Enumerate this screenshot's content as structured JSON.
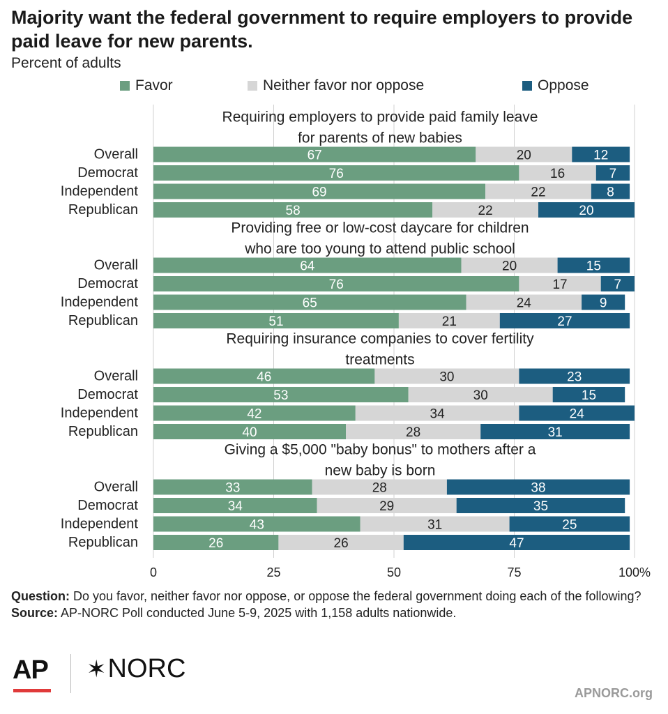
{
  "title": "Majority want the federal government to require employers to provide paid leave for new parents.",
  "subtitle": "Percent of adults",
  "legend": [
    {
      "label": "Favor",
      "color": "#6b9e80"
    },
    {
      "label": "Neither favor nor oppose",
      "color": "#d6d6d6"
    },
    {
      "label": "Oppose",
      "color": "#1c5d80"
    }
  ],
  "chart_data": {
    "type": "bar",
    "orientation": "horizontal-stacked",
    "xlim": [
      0,
      100
    ],
    "xticks": [
      "0",
      "25",
      "50",
      "75",
      "100%"
    ],
    "grid": true,
    "legend_position": "top",
    "series_names": [
      "Favor",
      "Neither favor nor oppose",
      "Oppose"
    ],
    "colors": [
      "#6b9e80",
      "#d6d6d6",
      "#1c5d80"
    ],
    "label_colors": [
      "#ffffff",
      "#222222",
      "#ffffff"
    ],
    "groups": [
      {
        "title": [
          "Requiring employers to provide paid family leave",
          "for parents of new babies"
        ],
        "rows": [
          {
            "label": "Overall",
            "values": [
              67,
              20,
              12
            ]
          },
          {
            "label": "Democrat",
            "values": [
              76,
              16,
              7
            ]
          },
          {
            "label": "Independent",
            "values": [
              69,
              22,
              8
            ]
          },
          {
            "label": "Republican",
            "values": [
              58,
              22,
              20
            ]
          }
        ]
      },
      {
        "title": [
          "Providing free or low-cost daycare for children",
          "who are too young to attend public school"
        ],
        "rows": [
          {
            "label": "Overall",
            "values": [
              64,
              20,
              15
            ]
          },
          {
            "label": "Democrat",
            "values": [
              76,
              17,
              7
            ]
          },
          {
            "label": "Independent",
            "values": [
              65,
              24,
              9
            ]
          },
          {
            "label": "Republican",
            "values": [
              51,
              21,
              27
            ]
          }
        ]
      },
      {
        "title": [
          "Requiring insurance companies to cover fertility",
          "treatments"
        ],
        "rows": [
          {
            "label": "Overall",
            "values": [
              46,
              30,
              23
            ]
          },
          {
            "label": "Democrat",
            "values": [
              53,
              30,
              15
            ]
          },
          {
            "label": "Independent",
            "values": [
              42,
              34,
              24
            ]
          },
          {
            "label": "Republican",
            "values": [
              40,
              28,
              31
            ]
          }
        ]
      },
      {
        "title": [
          "Giving a $5,000 \"baby bonus\" to mothers after a",
          "new baby is born"
        ],
        "rows": [
          {
            "label": "Overall",
            "values": [
              33,
              28,
              38
            ]
          },
          {
            "label": "Democrat",
            "values": [
              34,
              29,
              35
            ]
          },
          {
            "label": "Independent",
            "values": [
              43,
              31,
              25
            ]
          },
          {
            "label": "Republican",
            "values": [
              26,
              26,
              47
            ]
          }
        ]
      }
    ]
  },
  "footnote": {
    "question_label": "Question:",
    "question_text": " Do you favor, neither favor nor oppose, or oppose the federal government doing each of the following?",
    "source_label": "Source:",
    "source_text": " AP-NORC Poll conducted June 5-9, 2025 with 1,158 adults nationwide."
  },
  "logos": {
    "ap": "AP",
    "norc_star": "✶",
    "norc": "NORC",
    "site": "APNORC.org"
  }
}
